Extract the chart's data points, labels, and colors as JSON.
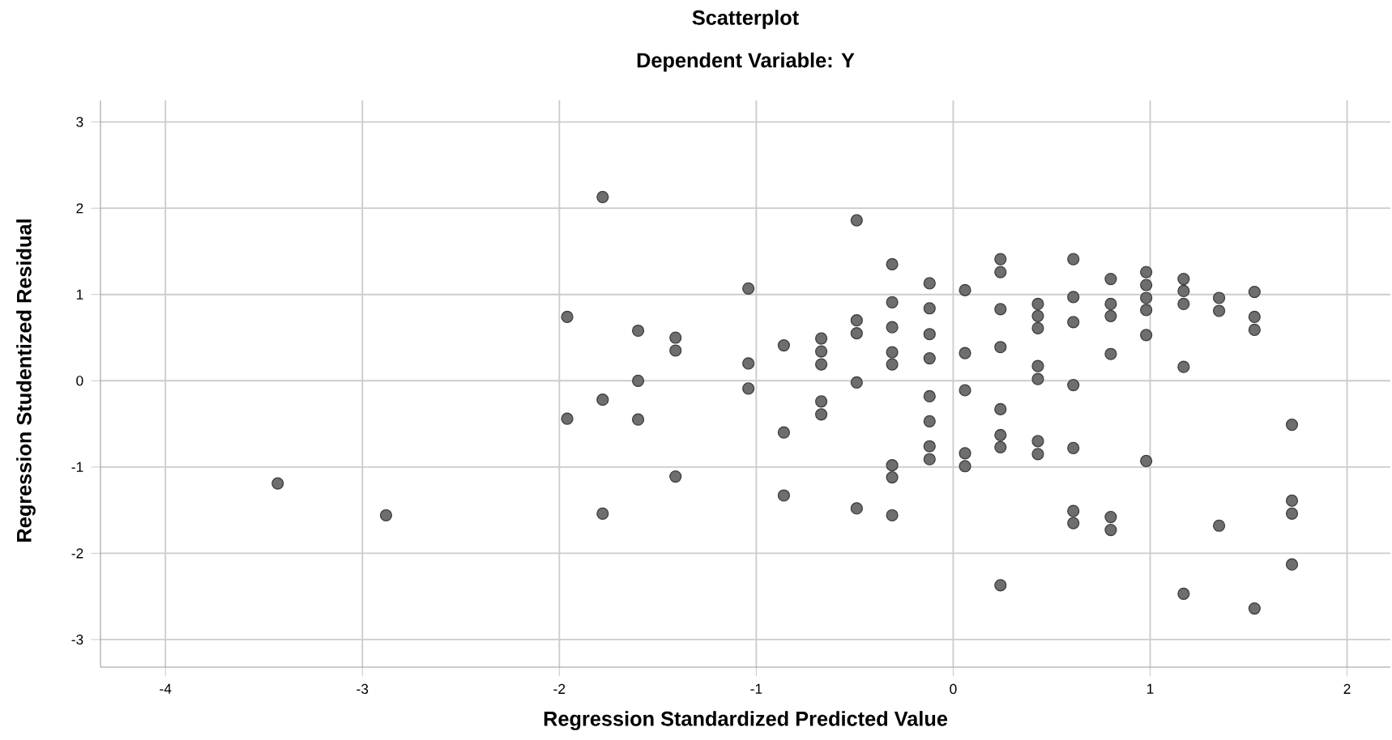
{
  "chart_data": {
    "type": "scatter",
    "title": "Scatterplot",
    "subtitle": "Dependent Variable: Y",
    "xlabel": "Regression Standardized Predicted Value",
    "ylabel": "Regression Studentized Residual",
    "x": [
      -3.43,
      -2.88,
      -1.96,
      -1.96,
      -1.78,
      -1.78,
      -1.78,
      -1.6,
      -1.6,
      -1.6,
      -1.41,
      -1.41,
      -1.41,
      -1.04,
      -1.04,
      -1.04,
      -0.86,
      -0.86,
      -0.86,
      -0.67,
      -0.67,
      -0.67,
      -0.67,
      -0.67,
      -0.49,
      -0.49,
      -0.49,
      -0.49,
      -0.49,
      -0.31,
      -0.31,
      -0.31,
      -0.31,
      -0.31,
      -0.31,
      -0.31,
      -0.31,
      -0.12,
      -0.12,
      -0.12,
      -0.12,
      -0.12,
      -0.12,
      -0.12,
      -0.12,
      0.06,
      0.06,
      0.06,
      0.06,
      0.06,
      0.24,
      0.24,
      0.24,
      0.24,
      0.24,
      0.24,
      0.24,
      0.24,
      0.43,
      0.43,
      0.43,
      0.43,
      0.43,
      0.43,
      0.43,
      0.61,
      0.61,
      0.61,
      0.61,
      0.61,
      0.61,
      0.61,
      0.8,
      0.8,
      0.8,
      0.8,
      0.8,
      0.8,
      0.98,
      0.98,
      0.98,
      0.98,
      0.98,
      0.98,
      1.17,
      1.17,
      1.17,
      1.17,
      1.17,
      1.35,
      1.35,
      1.35,
      1.53,
      1.53,
      1.53,
      1.53,
      1.72,
      1.72,
      1.72,
      1.72
    ],
    "values": [
      -1.19,
      -1.56,
      0.74,
      -0.44,
      2.13,
      -0.22,
      -1.54,
      0.58,
      0.0,
      -0.45,
      0.5,
      0.35,
      -1.11,
      1.07,
      0.2,
      -0.09,
      0.41,
      -0.6,
      -1.33,
      0.49,
      0.34,
      0.19,
      -0.24,
      -0.39,
      1.86,
      0.7,
      0.55,
      -0.02,
      -1.48,
      1.35,
      0.91,
      0.62,
      0.33,
      0.19,
      -0.98,
      -1.12,
      -1.56,
      1.13,
      0.84,
      0.54,
      0.26,
      -0.18,
      -0.47,
      -0.76,
      -0.91,
      1.05,
      0.32,
      -0.11,
      -0.84,
      -0.99,
      1.41,
      1.26,
      0.83,
      0.39,
      -0.33,
      -0.63,
      -0.77,
      -2.37,
      0.89,
      0.75,
      0.61,
      0.17,
      0.02,
      -0.7,
      -0.85,
      1.41,
      0.97,
      0.68,
      -0.05,
      -0.78,
      -1.51,
      -1.65,
      1.18,
      0.89,
      0.75,
      0.31,
      -1.58,
      -1.73,
      1.26,
      1.11,
      0.96,
      0.82,
      0.53,
      -0.93,
      1.18,
      1.04,
      0.89,
      0.16,
      -2.47,
      0.96,
      0.81,
      -1.68,
      1.03,
      0.74,
      0.59,
      -2.64,
      -0.51,
      -1.39,
      -1.54,
      -2.13
    ],
    "color": "#6e6e6e",
    "marker": "circle",
    "xlim": [
      -4.33,
      2.22
    ],
    "ylim": [
      -3.32,
      3.25
    ],
    "xticks": [
      -4,
      -3,
      -2,
      -1,
      0,
      1,
      2
    ],
    "yticks": [
      -3,
      -2,
      -1,
      0,
      1,
      2,
      3
    ],
    "grid": true
  }
}
